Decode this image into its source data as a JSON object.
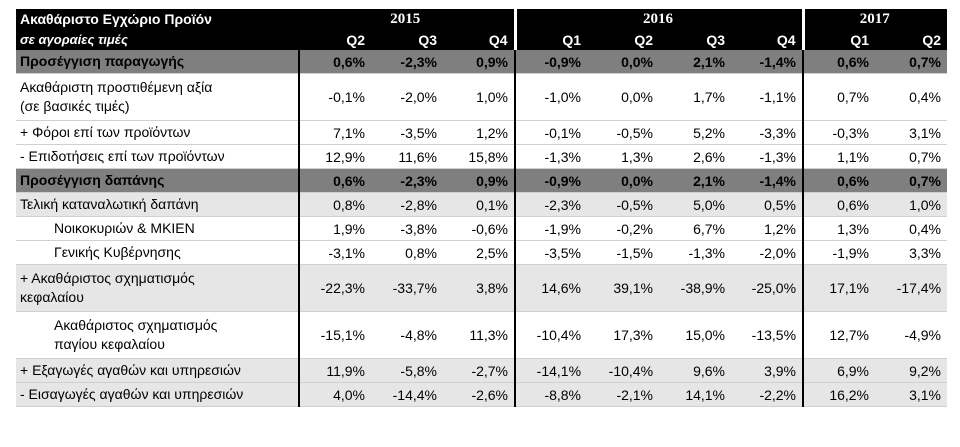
{
  "header": {
    "title": "Ακαθάριστο Εγχώριο Προϊόν",
    "subtitle": "σε αγοραίες τιμές",
    "years": [
      {
        "label": "2015",
        "span": 3
      },
      {
        "label": "2016",
        "span": 4
      },
      {
        "label": "2017",
        "span": 2
      }
    ],
    "quarters": [
      "Q2",
      "Q3",
      "Q4",
      "Q1",
      "Q2",
      "Q3",
      "Q4",
      "Q1",
      "Q2"
    ]
  },
  "rows": [
    {
      "label": "Προσέγγιση παραγωγής",
      "style": "dark",
      "values": [
        "0,6%",
        "-2,3%",
        "0,9%",
        "-0,9%",
        "0,0%",
        "2,1%",
        "-1,4%",
        "0,6%",
        "0,7%"
      ]
    },
    {
      "label": "Ακαθάριστη προστιθέμενη αξία\n(σε βασικές τιμές)",
      "style": "tall",
      "values": [
        "-0,1%",
        "-2,0%",
        "1,0%",
        "-1,0%",
        "0,0%",
        "1,7%",
        "-1,1%",
        "0,7%",
        "0,4%"
      ]
    },
    {
      "label": "+  Φόροι επί των προϊόντων",
      "style": "plain",
      "values": [
        "7,1%",
        "-3,5%",
        "1,2%",
        "-0,1%",
        "-0,5%",
        "5,2%",
        "-3,3%",
        "-0,3%",
        "3,1%"
      ]
    },
    {
      "label": "-   Επιδοτήσεις επί των προϊόντων",
      "style": "plain",
      "values": [
        "12,9%",
        "11,6%",
        "15,8%",
        "-1,3%",
        "1,3%",
        "2,6%",
        "-1,3%",
        "1,1%",
        "0,7%"
      ]
    },
    {
      "label": "Προσέγγιση δαπάνης",
      "style": "dark",
      "values": [
        "0,6%",
        "-2,3%",
        "0,9%",
        "-0,9%",
        "0,0%",
        "2,1%",
        "-1,4%",
        "0,6%",
        "0,7%"
      ]
    },
    {
      "label": "Τελική καταναλωτική δαπάνη",
      "style": "light",
      "values": [
        "0,8%",
        "-2,8%",
        "0,1%",
        "-2,3%",
        "-0,5%",
        "5,0%",
        "0,5%",
        "0,6%",
        "1,0%"
      ]
    },
    {
      "label": "Νοικοκυριών & ΜΚΙΕΝ",
      "style": "plain-indent",
      "values": [
        "1,9%",
        "-3,8%",
        "-0,6%",
        "-1,9%",
        "-0,2%",
        "6,7%",
        "1,2%",
        "1,3%",
        "0,4%"
      ]
    },
    {
      "label": "Γενικής Κυβέρνησης",
      "style": "plain-indent",
      "values": [
        "-3,1%",
        "0,8%",
        "2,5%",
        "-3,5%",
        "-1,5%",
        "-1,3%",
        "-2,0%",
        "-1,9%",
        "3,3%"
      ]
    },
    {
      "label": "+ Ακαθάριστος σχηματισμός\nκεφαλαίου",
      "style": "light-tall",
      "values": [
        "-22,3%",
        "-33,7%",
        "3,8%",
        "14,6%",
        "39,1%",
        "-38,9%",
        "-25,0%",
        "17,1%",
        "-17,4%"
      ]
    },
    {
      "label": "Ακαθάριστος σχηματισμός\nπαγίου κεφαλαίου",
      "style": "plain-tall-indent",
      "values": [
        "-15,1%",
        "-4,8%",
        "11,3%",
        "-10,4%",
        "17,3%",
        "15,0%",
        "-13,5%",
        "12,7%",
        "-4,9%"
      ]
    },
    {
      "label": "+ Εξαγωγές αγαθών και υπηρεσιών",
      "style": "light",
      "values": [
        "11,9%",
        "-5,8%",
        "-2,7%",
        "-14,1%",
        "-10,4%",
        "9,6%",
        "3,9%",
        "6,9%",
        "9,2%"
      ]
    },
    {
      "label": "-  Εισαγωγές αγαθών και υπηρεσιών",
      "style": "light",
      "values": [
        "4,0%",
        "-14,4%",
        "-2,6%",
        "-8,8%",
        "-2,1%",
        "14,1%",
        "-2,2%",
        "16,2%",
        "3,1%"
      ]
    }
  ]
}
